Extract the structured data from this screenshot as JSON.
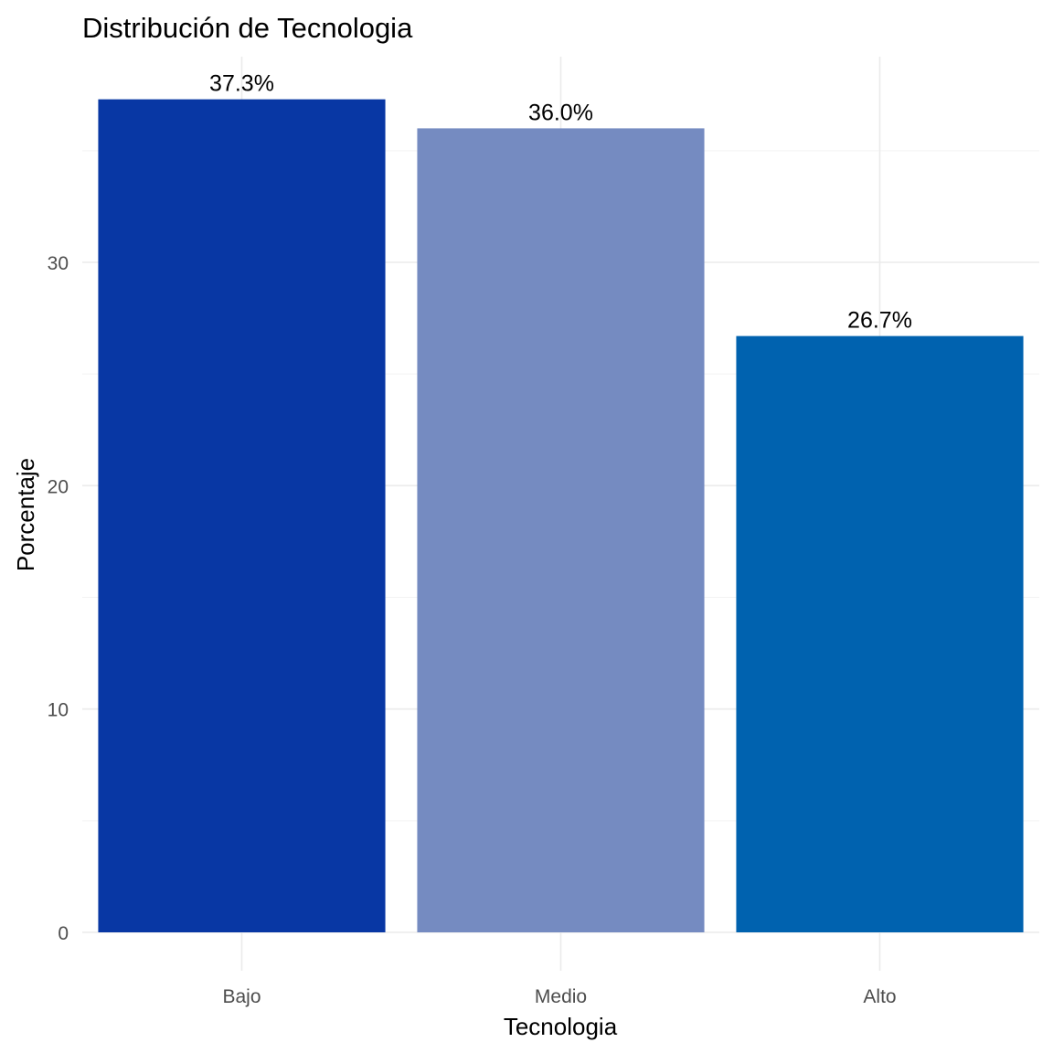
{
  "chart_data": {
    "type": "bar",
    "title": "Distribución de Tecnologia",
    "xlabel": "Tecnologia",
    "ylabel": "Porcentaje",
    "categories": [
      "Bajo",
      "Medio",
      "Alto"
    ],
    "values": [
      37.3,
      36.0,
      26.7
    ],
    "value_labels": [
      "37.3%",
      "36.0%",
      "26.7%"
    ],
    "colors": [
      "#0837A4",
      "#758BC1",
      "#0062AF"
    ],
    "yticks": [
      0,
      10,
      20,
      30
    ],
    "ytick_labels": [
      "0",
      "10",
      "20",
      "30"
    ],
    "ylim": [
      0,
      39.2
    ],
    "grid": true,
    "legend": "none"
  }
}
